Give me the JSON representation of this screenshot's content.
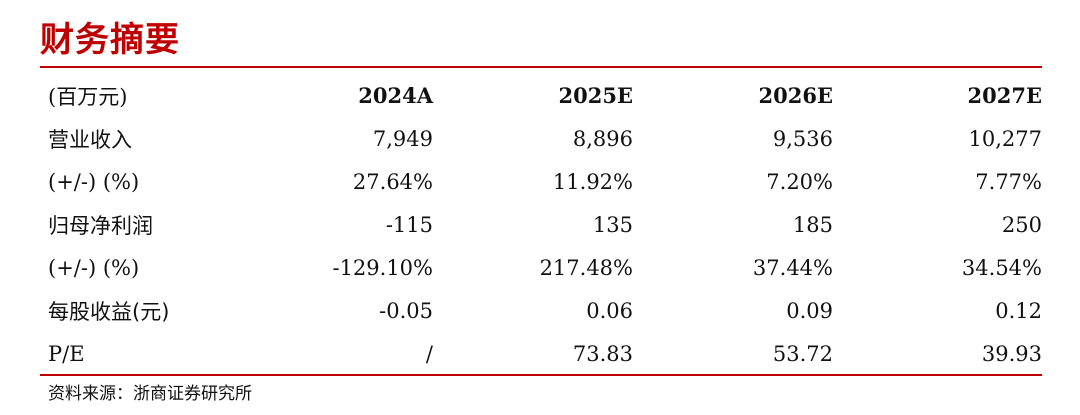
{
  "title": "财务摘要",
  "table": {
    "header": [
      "(百万元)",
      "2024A",
      "2025E",
      "2026E",
      "2027E"
    ],
    "rows": [
      {
        "label": "营业收入",
        "values": [
          "7,949",
          "8,896",
          "9,536",
          "10,277"
        ]
      },
      {
        "label": "(+/-) (%)",
        "values": [
          "27.64%",
          "11.92%",
          "7.20%",
          "7.77%"
        ]
      },
      {
        "label": "归母净利润",
        "values": [
          "-115",
          "135",
          "185",
          "250"
        ]
      },
      {
        "label": "(+/-) (%)",
        "values": [
          "-129.10%",
          "217.48%",
          "37.44%",
          "34.54%"
        ]
      },
      {
        "label": "每股收益(元)",
        "values": [
          "-0.05",
          "0.06",
          "0.09",
          "0.12"
        ]
      },
      {
        "label": "P/E",
        "values": [
          "/",
          "73.83",
          "53.72",
          "39.93"
        ]
      }
    ]
  },
  "source": "资料来源：浙商证券研究所",
  "colors": {
    "accent": "#c00000",
    "text": "#111111"
  }
}
